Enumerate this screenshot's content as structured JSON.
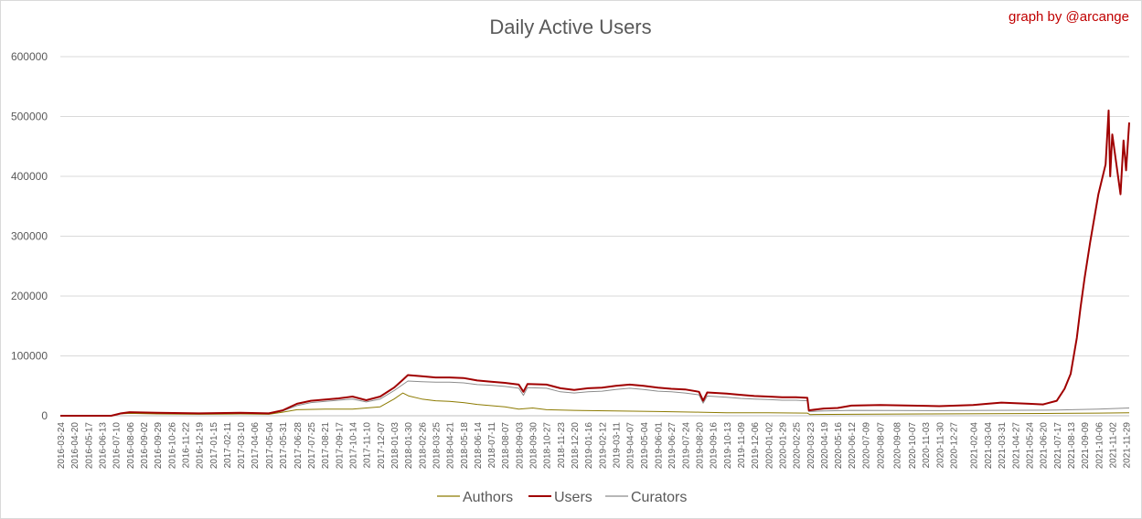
{
  "chart_data": {
    "type": "line",
    "title": "Daily Active Users",
    "credit": "graph by @arcange",
    "xlabel": "",
    "ylabel": "",
    "ylim": [
      0,
      600000
    ],
    "yticks": [
      "0",
      "100000",
      "200000",
      "300000",
      "400000",
      "500000",
      "600000"
    ],
    "grid": true,
    "legend_position": "bottom",
    "x_tick_labels": [
      "2016-03-24",
      "2016-04-20",
      "2016-05-17",
      "2016-06-13",
      "2016-07-10",
      "2016-08-06",
      "2016-09-02",
      "2016-09-29",
      "2016-10-26",
      "2016-11-22",
      "2016-12-19",
      "2017-01-15",
      "2017-02-11",
      "2017-03-10",
      "2017-04-06",
      "2017-05-04",
      "2017-05-31",
      "2017-06-28",
      "2017-07-25",
      "2017-08-21",
      "2017-09-17",
      "2017-10-14",
      "2017-11-10",
      "2017-12-07",
      "2018-01-03",
      "2018-01-30",
      "2018-02-26",
      "2018-03-25",
      "2018-04-21",
      "2018-05-18",
      "2018-06-14",
      "2018-07-11",
      "2018-08-07",
      "2018-09-03",
      "2018-09-30",
      "2018-10-27",
      "2018-11-23",
      "2018-12-20",
      "2019-01-16",
      "2019-02-12",
      "2019-03-11",
      "2019-04-07",
      "2019-05-04",
      "2019-06-01",
      "2019-06-27",
      "2019-07-24",
      "2019-08-20",
      "2019-09-16",
      "2019-10-13",
      "2019-11-09",
      "2019-12-06",
      "2020-01-02",
      "2020-01-29",
      "2020-02-25",
      "2020-03-23",
      "2020-04-19",
      "2020-05-16",
      "2020-06-12",
      "2020-07-09",
      "2020-08-07",
      "2020-09-08",
      "2020-10-07",
      "2020-11-03",
      "2020-11-30",
      "2020-12-27",
      "2021-02-04",
      "2021-03-04",
      "2021-03-31",
      "2021-04-27",
      "2021-05-24",
      "2021-06-20",
      "2021-07-17",
      "2021-08-13",
      "2021-09-09",
      "2021-10-06",
      "2021-11-02",
      "2021-11-29"
    ],
    "x_start": "2016-03-24",
    "x_end": "2021-12-05",
    "series": [
      {
        "name": "Authors",
        "color": "#8c7a00",
        "points": [
          [
            "2016-03-24",
            0
          ],
          [
            "2016-07-01",
            0
          ],
          [
            "2016-07-15",
            3000
          ],
          [
            "2016-08-06",
            4000
          ],
          [
            "2016-09-29",
            3000
          ],
          [
            "2016-12-19",
            2500
          ],
          [
            "2017-03-10",
            3000
          ],
          [
            "2017-05-04",
            2500
          ],
          [
            "2017-05-31",
            6000
          ],
          [
            "2017-06-28",
            10000
          ],
          [
            "2017-08-21",
            11000
          ],
          [
            "2017-10-14",
            11000
          ],
          [
            "2017-12-07",
            15000
          ],
          [
            "2018-01-03",
            28000
          ],
          [
            "2018-01-20",
            38000
          ],
          [
            "2018-02-01",
            33000
          ],
          [
            "2018-02-26",
            28000
          ],
          [
            "2018-03-25",
            25000
          ],
          [
            "2018-04-21",
            24000
          ],
          [
            "2018-05-18",
            22000
          ],
          [
            "2018-06-14",
            19000
          ],
          [
            "2018-08-07",
            15000
          ],
          [
            "2018-09-03",
            11000
          ],
          [
            "2018-09-30",
            13000
          ],
          [
            "2018-10-27",
            10000
          ],
          [
            "2018-12-20",
            9000
          ],
          [
            "2019-03-11",
            8000
          ],
          [
            "2019-06-01",
            7000
          ],
          [
            "2019-08-20",
            6000
          ],
          [
            "2019-10-13",
            5000
          ],
          [
            "2020-01-02",
            5000
          ],
          [
            "2020-03-18",
            4500
          ],
          [
            "2020-03-23",
            2000
          ],
          [
            "2020-06-12",
            2500
          ],
          [
            "2020-11-03",
            3000
          ],
          [
            "2021-03-04",
            3500
          ],
          [
            "2021-07-17",
            4000
          ],
          [
            "2021-10-06",
            4500
          ],
          [
            "2021-12-05",
            5000
          ]
        ]
      },
      {
        "name": "Users",
        "color": "#a00000",
        "points": [
          [
            "2016-03-24",
            0
          ],
          [
            "2016-07-01",
            0
          ],
          [
            "2016-07-20",
            4000
          ],
          [
            "2016-08-06",
            6000
          ],
          [
            "2016-09-29",
            5000
          ],
          [
            "2016-12-19",
            4000
          ],
          [
            "2017-03-10",
            5000
          ],
          [
            "2017-05-04",
            4000
          ],
          [
            "2017-05-31",
            9000
          ],
          [
            "2017-06-28",
            20000
          ],
          [
            "2017-07-25",
            25000
          ],
          [
            "2017-09-17",
            29000
          ],
          [
            "2017-10-14",
            32000
          ],
          [
            "2017-11-10",
            26000
          ],
          [
            "2017-12-07",
            32000
          ],
          [
            "2018-01-03",
            47000
          ],
          [
            "2018-01-20",
            60000
          ],
          [
            "2018-01-30",
            68000
          ],
          [
            "2018-02-26",
            66000
          ],
          [
            "2018-03-25",
            64000
          ],
          [
            "2018-04-21",
            64000
          ],
          [
            "2018-05-18",
            63000
          ],
          [
            "2018-06-14",
            59000
          ],
          [
            "2018-07-11",
            57000
          ],
          [
            "2018-08-07",
            55000
          ],
          [
            "2018-09-03",
            52000
          ],
          [
            "2018-09-12",
            40000
          ],
          [
            "2018-09-20",
            53000
          ],
          [
            "2018-10-27",
            52000
          ],
          [
            "2018-11-23",
            46000
          ],
          [
            "2018-12-20",
            43000
          ],
          [
            "2019-01-16",
            46000
          ],
          [
            "2019-02-12",
            47000
          ],
          [
            "2019-03-11",
            50000
          ],
          [
            "2019-04-07",
            52000
          ],
          [
            "2019-05-04",
            50000
          ],
          [
            "2019-06-01",
            47000
          ],
          [
            "2019-06-27",
            45000
          ],
          [
            "2019-07-24",
            44000
          ],
          [
            "2019-08-20",
            40000
          ],
          [
            "2019-08-28",
            25000
          ],
          [
            "2019-09-05",
            39000
          ],
          [
            "2019-10-13",
            37000
          ],
          [
            "2019-11-09",
            35000
          ],
          [
            "2019-12-06",
            33000
          ],
          [
            "2020-01-02",
            32000
          ],
          [
            "2020-01-29",
            31000
          ],
          [
            "2020-02-25",
            31000
          ],
          [
            "2020-03-18",
            30000
          ],
          [
            "2020-03-21",
            9000
          ],
          [
            "2020-04-19",
            12000
          ],
          [
            "2020-05-16",
            13000
          ],
          [
            "2020-06-12",
            17000
          ],
          [
            "2020-08-07",
            18000
          ],
          [
            "2020-10-07",
            17000
          ],
          [
            "2020-11-30",
            16000
          ],
          [
            "2021-02-04",
            18000
          ],
          [
            "2021-03-04",
            20000
          ],
          [
            "2021-03-31",
            22000
          ],
          [
            "2021-05-24",
            20000
          ],
          [
            "2021-06-20",
            19000
          ],
          [
            "2021-07-17",
            25000
          ],
          [
            "2021-08-01",
            45000
          ],
          [
            "2021-08-13",
            70000
          ],
          [
            "2021-08-25",
            130000
          ],
          [
            "2021-09-01",
            180000
          ],
          [
            "2021-09-09",
            230000
          ],
          [
            "2021-09-20",
            290000
          ],
          [
            "2021-10-06",
            370000
          ],
          [
            "2021-10-20",
            420000
          ],
          [
            "2021-10-26",
            510000
          ],
          [
            "2021-10-29",
            400000
          ],
          [
            "2021-11-02",
            470000
          ],
          [
            "2021-11-10",
            420000
          ],
          [
            "2021-11-18",
            370000
          ],
          [
            "2021-11-24",
            460000
          ],
          [
            "2021-11-29",
            410000
          ],
          [
            "2021-12-05",
            490000
          ]
        ]
      },
      {
        "name": "Curators",
        "color": "#8c8c8c",
        "points": [
          [
            "2016-03-24",
            0
          ],
          [
            "2016-07-01",
            0
          ],
          [
            "2016-07-20",
            3500
          ],
          [
            "2016-08-06",
            5000
          ],
          [
            "2016-09-29",
            4000
          ],
          [
            "2016-12-19",
            3500
          ],
          [
            "2017-03-10",
            4000
          ],
          [
            "2017-05-04",
            3500
          ],
          [
            "2017-05-31",
            8000
          ],
          [
            "2017-06-28",
            17000
          ],
          [
            "2017-07-25",
            22000
          ],
          [
            "2017-09-17",
            26000
          ],
          [
            "2017-10-14",
            28000
          ],
          [
            "2017-11-10",
            23000
          ],
          [
            "2017-12-07",
            28000
          ],
          [
            "2018-01-03",
            42000
          ],
          [
            "2018-01-30",
            58000
          ],
          [
            "2018-02-26",
            57000
          ],
          [
            "2018-03-25",
            56000
          ],
          [
            "2018-04-21",
            56000
          ],
          [
            "2018-05-18",
            55000
          ],
          [
            "2018-06-14",
            52000
          ],
          [
            "2018-07-11",
            51000
          ],
          [
            "2018-08-07",
            49000
          ],
          [
            "2018-09-03",
            46000
          ],
          [
            "2018-09-12",
            34000
          ],
          [
            "2018-09-20",
            47000
          ],
          [
            "2018-10-27",
            46000
          ],
          [
            "2018-11-23",
            40000
          ],
          [
            "2018-12-20",
            38000
          ],
          [
            "2019-01-16",
            40000
          ],
          [
            "2019-02-12",
            41000
          ],
          [
            "2019-03-11",
            44000
          ],
          [
            "2019-04-07",
            46000
          ],
          [
            "2019-05-04",
            44000
          ],
          [
            "2019-06-01",
            41000
          ],
          [
            "2019-06-27",
            40000
          ],
          [
            "2019-07-24",
            38000
          ],
          [
            "2019-08-20",
            35000
          ],
          [
            "2019-08-28",
            21000
          ],
          [
            "2019-09-05",
            33000
          ],
          [
            "2019-10-13",
            31000
          ],
          [
            "2019-11-09",
            29000
          ],
          [
            "2019-12-06",
            28000
          ],
          [
            "2020-01-02",
            27000
          ],
          [
            "2020-01-29",
            26000
          ],
          [
            "2020-02-25",
            26000
          ],
          [
            "2020-03-18",
            25000
          ],
          [
            "2020-03-21",
            7000
          ],
          [
            "2020-04-19",
            8000
          ],
          [
            "2020-06-12",
            9000
          ],
          [
            "2020-11-30",
            8500
          ],
          [
            "2021-03-04",
            9000
          ],
          [
            "2021-07-17",
            9500
          ],
          [
            "2021-10-06",
            11000
          ],
          [
            "2021-12-05",
            13000
          ]
        ]
      }
    ]
  }
}
